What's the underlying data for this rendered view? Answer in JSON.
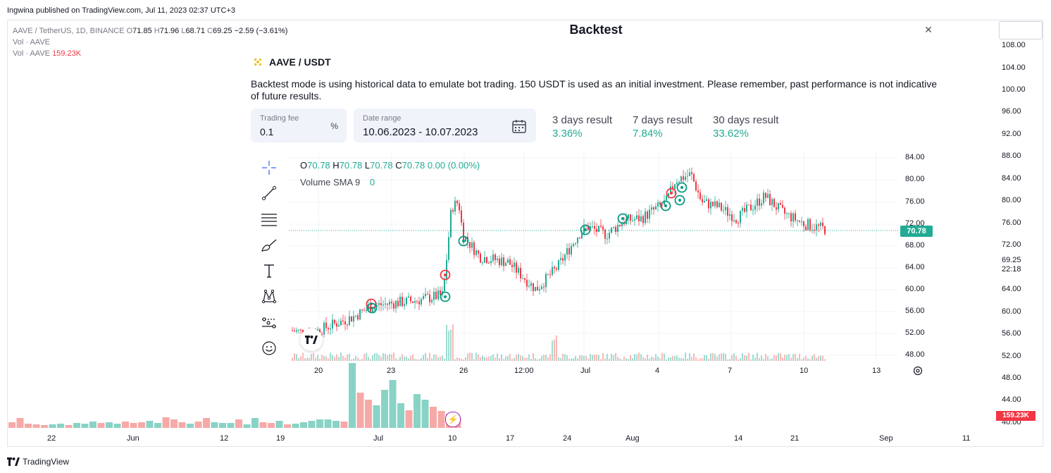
{
  "publisher_line": "Ingwina published on TradingView.com, Jul 11, 2023 02:37 UTC+3",
  "outer_chart": {
    "symbol_line": {
      "symbol": "AAVE / TetherUS, 1D, BINANCE",
      "o_label": "O",
      "o": "71.85",
      "h_label": "H",
      "h": "71.96",
      "l_label": "L",
      "l": "68.71",
      "c_label": "C",
      "c": "69.25",
      "change": "−2.59 (−3.61%)"
    },
    "vol_line_1": "Vol · AAVE",
    "vol_line_2_label": "Vol · AAVE",
    "vol_line_2_value": "159.23K",
    "price_axis": [
      "108.00",
      "104.00",
      "100.00",
      "96.00",
      "92.00",
      "88.00",
      "84.00",
      "80.00",
      "76.00",
      "72.00",
      "69.25",
      "22:18",
      "64.00",
      "60.00",
      "56.00",
      "52.00",
      "48.00",
      "44.00",
      "40.00"
    ],
    "volume_tag": "159.23K",
    "date_axis": [
      "22",
      "Jun",
      "12",
      "19",
      "Jul",
      "10",
      "17",
      "24",
      "Aug",
      "14",
      "21",
      "Sep",
      "11"
    ]
  },
  "modal": {
    "title": "Backtest",
    "close_icon": "close-icon",
    "pair": "AAVE / USDT",
    "description": "Backtest mode is using historical data to emulate bot trading. 150 USDT is used as an initial investment. Please remember, past performance is not indicative of future results.",
    "trading_fee": {
      "label": "Trading fee",
      "value": "0.1",
      "unit": "%"
    },
    "date_range": {
      "label": "Date range",
      "value": "10.06.2023 - 10.07.2023"
    },
    "results": [
      {
        "label": "3 days result",
        "value": "3.36%"
      },
      {
        "label": "7 days result",
        "value": "7.84%"
      },
      {
        "label": "30 days result",
        "value": "33.62%"
      }
    ],
    "accent_green": "#22ab94",
    "accent_red": "#f23645"
  },
  "inner_chart": {
    "legend": {
      "o_label": "O",
      "o": "70.78",
      "h_label": "H",
      "h": "70.78",
      "l_label": "L",
      "l": "70.78",
      "c_label": "C",
      "c": "70.78",
      "change": "0.00 (0.00%)",
      "volume_label": "Volume SMA 9",
      "volume_value": "0"
    },
    "price_axis": [
      "84.00",
      "80.00",
      "76.00",
      "72.00",
      "68.00",
      "64.00",
      "60.00",
      "56.00",
      "52.00",
      "48.00"
    ],
    "current_price": "70.78",
    "date_axis": [
      "20",
      "23",
      "26",
      "12:00",
      "Jul",
      "4",
      "7",
      "10",
      "13"
    ],
    "tools": [
      "crosshair-icon",
      "trend-line-icon",
      "fib-icon",
      "brush-icon",
      "text-icon",
      "pattern-icon",
      "forecast-icon",
      "emoji-icon"
    ]
  },
  "footer": {
    "logo": "TradingView"
  },
  "chart_data": {
    "type": "line",
    "title": "",
    "xlabel": "",
    "ylabel": "",
    "x": [
      "20",
      "23",
      "26",
      "Jul",
      "4",
      "7",
      "10"
    ],
    "series": [
      {
        "values": [
          53.5,
          57.5,
          73.0,
          66.0,
          77.0,
          76.0,
          71.0
        ]
      }
    ],
    "ylim": [
      46,
      86
    ]
  }
}
